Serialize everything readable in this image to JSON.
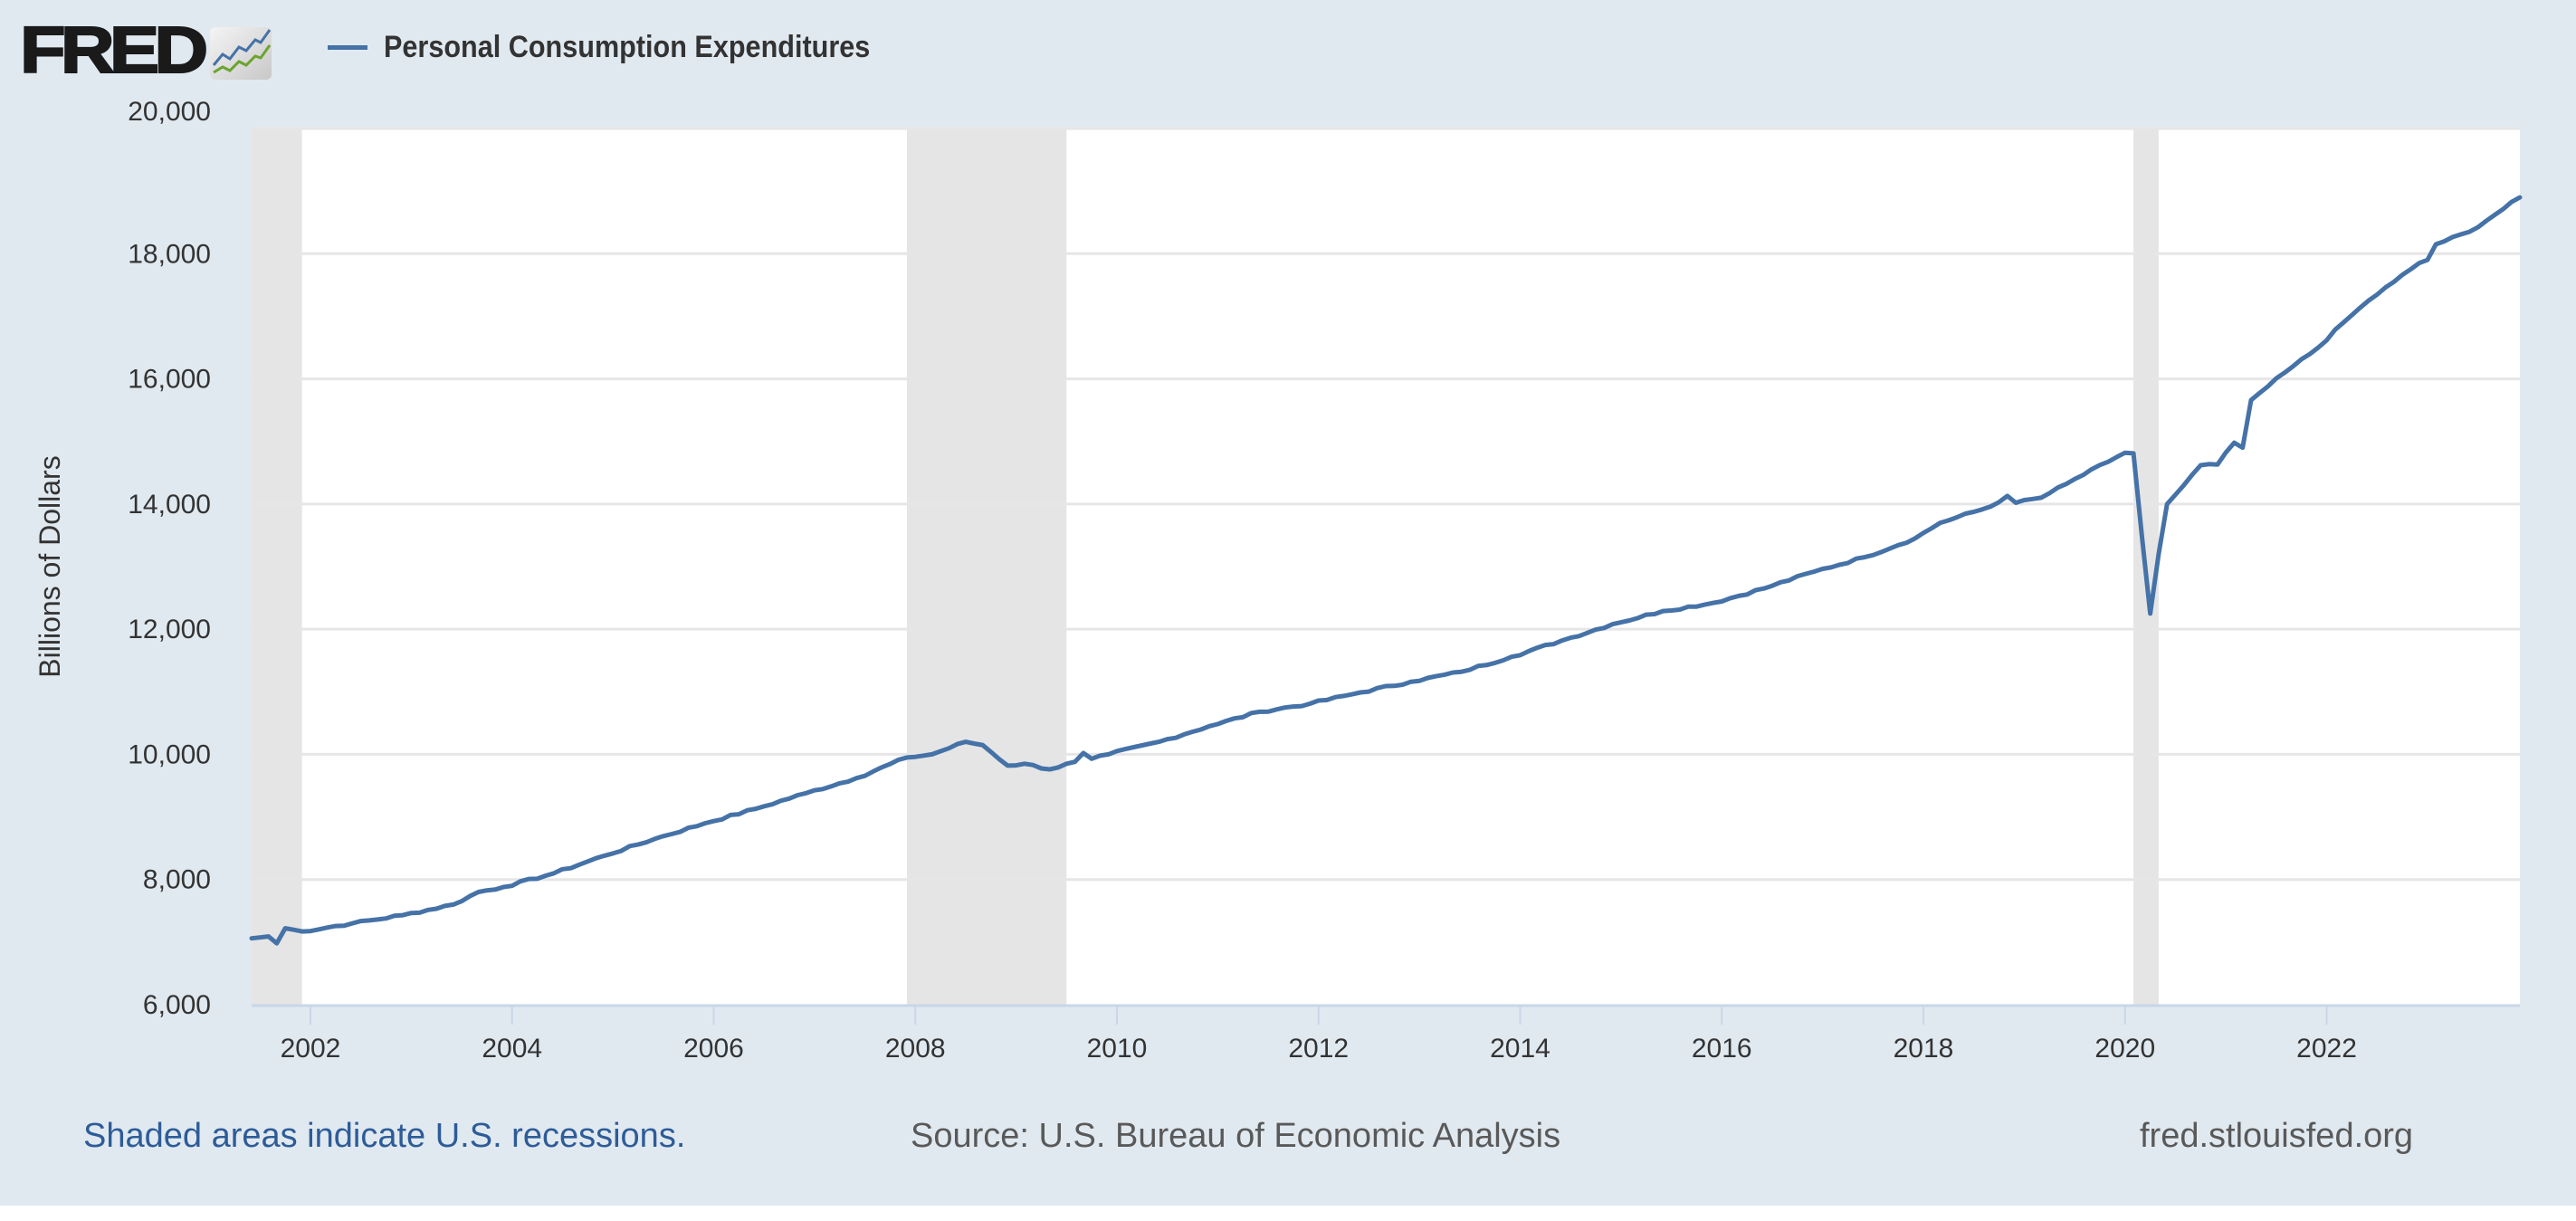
{
  "header": {
    "logo_text": "FRED",
    "logo_icon": "chart-line-icon",
    "legend_label": "Personal Consumption Expenditures",
    "legend_color": "#4572a7"
  },
  "footer": {
    "note": "Shaded areas indicate U.S. recessions.",
    "source": "Source: U.S. Bureau of Economic Analysis",
    "site": "fred.stlouisfed.org"
  },
  "colors": {
    "background": "#e1e9f0",
    "plot_background": "#ffffff",
    "gridline": "#e6e6e6",
    "recession": "#e5e5e5",
    "series": "#4572a7",
    "note_link": "#2d5c98"
  },
  "chart_data": {
    "type": "line",
    "title": "Personal Consumption Expenditures",
    "xlabel": "",
    "ylabel": "Billions of Dollars",
    "ylim": [
      6000,
      20000
    ],
    "xlim": [
      "2001-06",
      "2023-12"
    ],
    "grid": true,
    "legend_position": "top-left",
    "yticks": [
      6000,
      8000,
      10000,
      12000,
      14000,
      16000,
      18000,
      20000
    ],
    "ytick_labels": [
      "6,000",
      "8,000",
      "10,000",
      "12,000",
      "14,000",
      "16,000",
      "18,000",
      "20,000"
    ],
    "xticks": [
      2002,
      2004,
      2006,
      2008,
      2010,
      2012,
      2014,
      2016,
      2018,
      2020,
      2022
    ],
    "xtick_labels": [
      "2002",
      "2004",
      "2006",
      "2008",
      "2010",
      "2012",
      "2014",
      "2016",
      "2018",
      "2020",
      "2022"
    ],
    "recessions": [
      {
        "start": "2001-03",
        "end": "2001-11"
      },
      {
        "start": "2007-12",
        "end": "2009-06"
      },
      {
        "start": "2020-02",
        "end": "2020-04"
      }
    ],
    "series": [
      {
        "name": "Personal Consumption Expenditures",
        "frequency": "monthly",
        "start": "2001-06",
        "anchors": [
          [
            "2001-06",
            7060
          ],
          [
            "2001-08",
            7090
          ],
          [
            "2001-09",
            6980
          ],
          [
            "2001-10",
            7220
          ],
          [
            "2001-12",
            7170
          ],
          [
            "2002-06",
            7300
          ],
          [
            "2002-12",
            7430
          ],
          [
            "2003-06",
            7600
          ],
          [
            "2003-09",
            7800
          ],
          [
            "2003-12",
            7880
          ],
          [
            "2004-06",
            8100
          ],
          [
            "2004-12",
            8380
          ],
          [
            "2005-06",
            8650
          ],
          [
            "2005-12",
            8900
          ],
          [
            "2006-06",
            9130
          ],
          [
            "2006-12",
            9380
          ],
          [
            "2007-06",
            9620
          ],
          [
            "2007-12",
            9950
          ],
          [
            "2008-03",
            10000
          ],
          [
            "2008-07",
            10200
          ],
          [
            "2008-09",
            10150
          ],
          [
            "2008-12",
            9820
          ],
          [
            "2009-02",
            9850
          ],
          [
            "2009-05",
            9760
          ],
          [
            "2009-08",
            9880
          ],
          [
            "2009-09",
            10020
          ],
          [
            "2009-10",
            9930
          ],
          [
            "2009-12",
            10000
          ],
          [
            "2010-06",
            10200
          ],
          [
            "2010-12",
            10450
          ],
          [
            "2011-06",
            10680
          ],
          [
            "2011-12",
            10810
          ],
          [
            "2012-06",
            10990
          ],
          [
            "2012-12",
            11160
          ],
          [
            "2013-06",
            11320
          ],
          [
            "2013-12",
            11560
          ],
          [
            "2014-06",
            11820
          ],
          [
            "2014-12",
            12080
          ],
          [
            "2015-06",
            12290
          ],
          [
            "2015-12",
            12420
          ],
          [
            "2016-06",
            12650
          ],
          [
            "2016-12",
            12920
          ],
          [
            "2017-06",
            13150
          ],
          [
            "2017-12",
            13450
          ],
          [
            "2018-03",
            13700
          ],
          [
            "2018-09",
            13960
          ],
          [
            "2018-11",
            14130
          ],
          [
            "2018-12",
            14020
          ],
          [
            "2019-03",
            14100
          ],
          [
            "2019-06",
            14320
          ],
          [
            "2019-12",
            14750
          ],
          [
            "2020-01",
            14820
          ],
          [
            "2020-02",
            14810
          ],
          [
            "2020-03",
            13500
          ],
          [
            "2020-04",
            12250
          ],
          [
            "2020-05",
            13200
          ],
          [
            "2020-06",
            14000
          ],
          [
            "2020-08",
            14300
          ],
          [
            "2020-10",
            14620
          ],
          [
            "2020-12",
            14630
          ],
          [
            "2021-02",
            14980
          ],
          [
            "2021-03",
            14900
          ],
          [
            "2021-04",
            15660
          ],
          [
            "2021-06",
            15880
          ],
          [
            "2021-09",
            16200
          ],
          [
            "2021-12",
            16500
          ],
          [
            "2022-03",
            16900
          ],
          [
            "2022-06",
            17250
          ],
          [
            "2022-09",
            17550
          ],
          [
            "2022-12",
            17850
          ],
          [
            "2023-01",
            17900
          ],
          [
            "2023-02",
            18150
          ],
          [
            "2023-06",
            18350
          ],
          [
            "2023-09",
            18620
          ],
          [
            "2023-12",
            18900
          ]
        ]
      }
    ]
  }
}
